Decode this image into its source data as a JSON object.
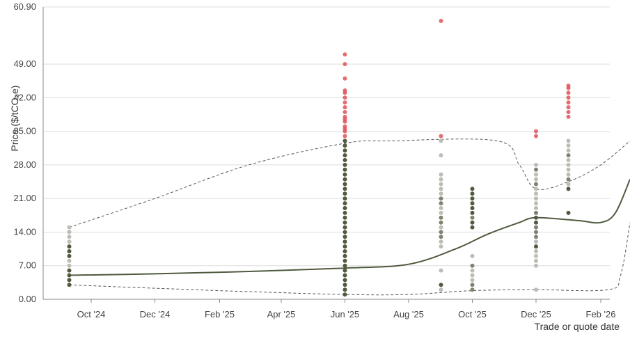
{
  "chart_data": {
    "type": "scatter",
    "xlabel": "Trade or quote date",
    "ylabel": "Price ($/tCO₂e)",
    "grid": true,
    "ylim": [
      0,
      60.9
    ],
    "xlim": [
      "2024-08-16",
      "2026-03-01"
    ],
    "yticks": [
      "0.00",
      "7.00",
      "14.00",
      "21.00",
      "28.00",
      "35.00",
      "42.00",
      "49.00",
      "60.90"
    ],
    "xticks": [
      {
        "date": "2024-10-01",
        "label": "Oct '24"
      },
      {
        "date": "2024-12-01",
        "label": "Dec '24"
      },
      {
        "date": "2025-02-01",
        "label": "Feb '25"
      },
      {
        "date": "2025-04-01",
        "label": "Apr '25"
      },
      {
        "date": "2025-06-01",
        "label": "Jun '25"
      },
      {
        "date": "2025-08-01",
        "label": "Aug '25"
      },
      {
        "date": "2025-10-01",
        "label": "Oct '25"
      },
      {
        "date": "2025-12-01",
        "label": "Dec '25"
      },
      {
        "date": "2026-02-01",
        "label": "Feb '26"
      }
    ],
    "colors": {
      "dark": "#4f5a3f",
      "mid": "#7d8470",
      "light": "#bdbdb5",
      "red": "#e05458",
      "line": "#4f5a3f",
      "band": "#555555",
      "grid": "#dddddd",
      "axis": "#888888"
    },
    "median_line": [
      {
        "x": "2024-09-10",
        "y": 5.0
      },
      {
        "x": "2024-12-01",
        "y": 5.3
      },
      {
        "x": "2025-03-01",
        "y": 5.8
      },
      {
        "x": "2025-06-01",
        "y": 6.5
      },
      {
        "x": "2025-08-01",
        "y": 7.3
      },
      {
        "x": "2025-09-15",
        "y": 10.5
      },
      {
        "x": "2025-10-15",
        "y": 13.5
      },
      {
        "x": "2025-11-15",
        "y": 16.0
      },
      {
        "x": "2025-12-01",
        "y": 17.0
      },
      {
        "x": "2026-01-10",
        "y": 16.4
      },
      {
        "x": "2026-02-01",
        "y": 16.0
      },
      {
        "x": "2026-02-15",
        "y": 18.0
      },
      {
        "x": "2026-03-01",
        "y": 25.0
      }
    ],
    "upper_band": [
      {
        "x": "2024-09-10",
        "y": 15.0
      },
      {
        "x": "2024-12-01",
        "y": 21.0
      },
      {
        "x": "2025-03-01",
        "y": 28.0
      },
      {
        "x": "2025-06-01",
        "y": 32.5
      },
      {
        "x": "2025-07-15",
        "y": 33.0
      },
      {
        "x": "2025-10-25",
        "y": 33.0
      },
      {
        "x": "2025-11-15",
        "y": 28.0
      },
      {
        "x": "2025-12-01",
        "y": 23.0
      },
      {
        "x": "2026-01-01",
        "y": 24.5
      },
      {
        "x": "2026-02-01",
        "y": 28.0
      },
      {
        "x": "2026-03-01",
        "y": 33.0
      }
    ],
    "lower_band": [
      {
        "x": "2024-09-10",
        "y": 3.0
      },
      {
        "x": "2024-12-01",
        "y": 2.3
      },
      {
        "x": "2025-03-01",
        "y": 1.6
      },
      {
        "x": "2025-06-01",
        "y": 1.0
      },
      {
        "x": "2025-08-01",
        "y": 1.0
      },
      {
        "x": "2025-10-01",
        "y": 1.8
      },
      {
        "x": "2025-12-01",
        "y": 2.0
      },
      {
        "x": "2026-02-08",
        "y": 2.0
      },
      {
        "x": "2026-02-20",
        "y": 5.0
      },
      {
        "x": "2026-03-01",
        "y": 16.0
      }
    ],
    "point_groups": [
      {
        "x": "2024-09-10",
        "color": "dark",
        "values": [
          3,
          4,
          5,
          6,
          9,
          10,
          11
        ]
      },
      {
        "x": "2024-09-10",
        "color": "light",
        "values": [
          7,
          8,
          12,
          13,
          14,
          15
        ]
      },
      {
        "x": "2025-06-01",
        "color": "dark",
        "values": [
          1,
          2,
          3,
          4,
          5,
          6,
          7,
          8,
          9,
          10,
          11,
          12,
          13,
          14,
          15,
          16,
          17,
          18,
          19,
          20,
          21,
          22,
          23,
          24,
          25,
          26,
          27,
          28,
          29,
          30,
          31,
          32,
          33
        ]
      },
      {
        "x": "2025-06-01",
        "color": "red",
        "values": [
          34,
          35,
          35.5,
          36,
          37,
          37.5,
          38,
          39,
          40,
          41,
          42,
          43,
          43.5,
          46,
          49,
          51
        ]
      },
      {
        "x": "2025-09-01",
        "color": "dark",
        "values": [
          3
        ]
      },
      {
        "x": "2025-09-01",
        "color": "mid",
        "values": [
          13,
          14,
          16,
          17,
          20,
          21
        ]
      },
      {
        "x": "2025-09-01",
        "color": "light",
        "values": [
          2,
          6,
          11,
          12,
          15,
          18,
          19,
          22,
          23,
          24,
          25,
          26,
          30,
          33
        ]
      },
      {
        "x": "2025-09-01",
        "color": "red",
        "values": [
          34,
          58
        ]
      },
      {
        "x": "2025-10-01",
        "color": "dark",
        "values": [
          15,
          16,
          18,
          19,
          20,
          21,
          22,
          23
        ]
      },
      {
        "x": "2025-10-01",
        "color": "mid",
        "values": [
          2,
          3,
          7,
          17
        ]
      },
      {
        "x": "2025-10-01",
        "color": "light",
        "values": [
          4,
          5,
          6,
          9
        ]
      },
      {
        "x": "2025-12-01",
        "color": "dark",
        "values": [
          11,
          16,
          17
        ]
      },
      {
        "x": "2025-12-01",
        "color": "mid",
        "values": [
          13,
          14,
          15,
          18,
          24,
          27
        ]
      },
      {
        "x": "2025-12-01",
        "color": "light",
        "values": [
          2,
          7,
          8,
          9,
          10,
          12,
          19,
          20,
          21,
          22,
          23,
          25,
          26,
          28
        ]
      },
      {
        "x": "2025-12-01",
        "color": "red",
        "values": [
          34,
          35
        ]
      },
      {
        "x": "2026-01-01",
        "color": "dark",
        "values": [
          18,
          23
        ]
      },
      {
        "x": "2026-01-01",
        "color": "mid",
        "values": [
          25,
          30
        ]
      },
      {
        "x": "2026-01-01",
        "color": "light",
        "values": [
          24,
          26,
          27,
          28,
          29,
          31,
          32,
          33
        ]
      },
      {
        "x": "2026-01-01",
        "color": "red",
        "values": [
          38,
          39,
          40,
          41,
          42,
          43,
          44,
          44.5
        ]
      }
    ]
  }
}
